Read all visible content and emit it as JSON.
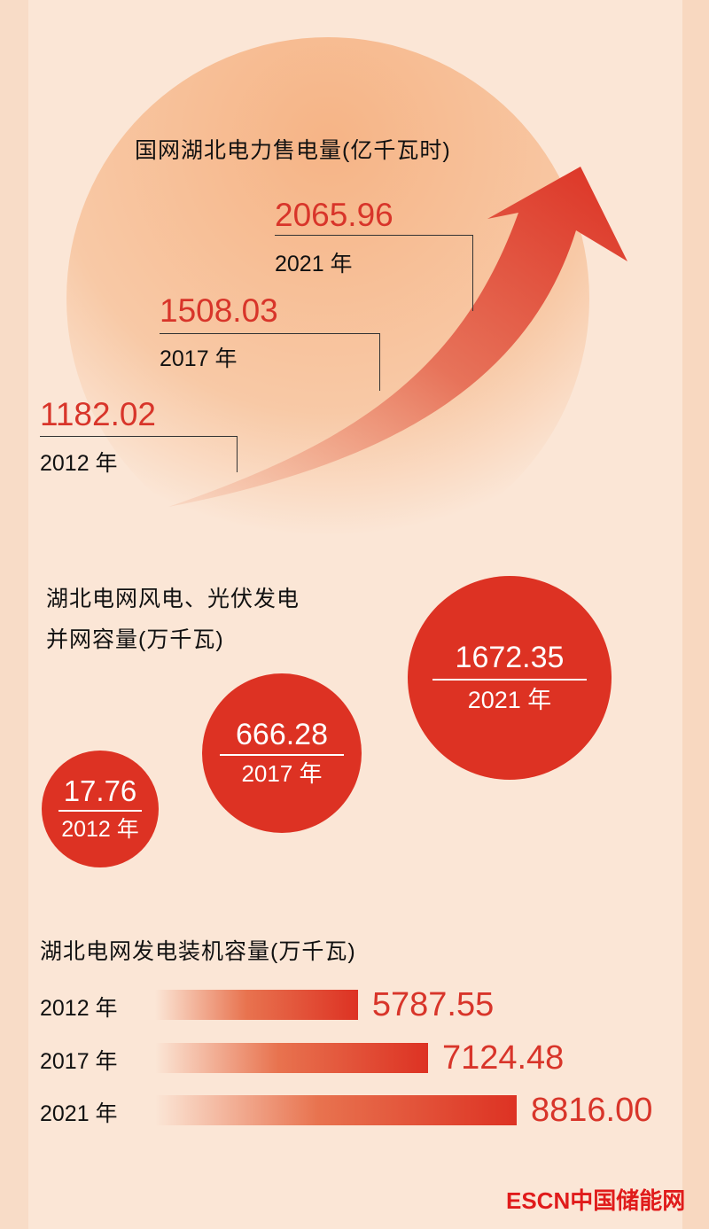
{
  "chart_data": [
    {
      "type": "line",
      "title": "国网湖北电力售电量(亿千瓦时)",
      "categories": [
        "2012 年",
        "2017 年",
        "2021 年"
      ],
      "values": [
        1182.02,
        1508.03,
        2065.96
      ],
      "data_labels": [
        "1182.02",
        "1508.03",
        "2065.96"
      ]
    },
    {
      "type": "scatter",
      "title_line1": "湖北电网风电、光伏发电",
      "title_line2": "并网容量(万千瓦)",
      "categories": [
        "2012 年",
        "2017 年",
        "2021 年"
      ],
      "values": [
        17.76,
        666.28,
        1672.35
      ],
      "data_labels": [
        "17.76",
        "666.28",
        "1672.35"
      ]
    },
    {
      "type": "bar",
      "title": "湖北电网发电装机容量(万千瓦)",
      "categories": [
        "2012 年",
        "2017 年",
        "2021 年"
      ],
      "values": [
        5787.55,
        7124.48,
        8816.0
      ],
      "data_labels": [
        "5787.55",
        "7124.48",
        "8816.00"
      ]
    }
  ],
  "logo": "ESCN中国储能网",
  "colors": {
    "accent": "#dd3223",
    "background": "#fbe6d6",
    "circle": "#f6b486"
  }
}
